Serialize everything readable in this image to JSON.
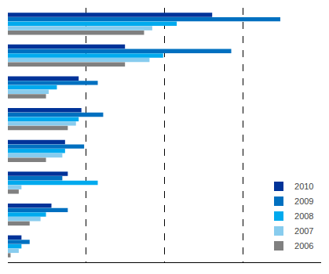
{
  "chart_data": {
    "type": "bar",
    "orientation": "horizontal",
    "categories": [
      null,
      null,
      null,
      null,
      null,
      null,
      null,
      null
    ],
    "series": [
      {
        "name": "2010",
        "color": "#003399",
        "values": [
          75,
          43,
          26,
          27,
          21,
          22,
          16,
          5
        ]
      },
      {
        "name": "2009",
        "color": "#0070C0",
        "values": [
          100,
          82,
          33,
          35,
          28,
          20,
          22,
          8
        ]
      },
      {
        "name": "2008",
        "color": "#00AAEE",
        "values": [
          62,
          57,
          18,
          26,
          21,
          33,
          14,
          5
        ]
      },
      {
        "name": "2007",
        "color": "#88CCEE",
        "values": [
          53,
          52,
          15,
          25,
          20,
          5,
          12,
          4
        ]
      },
      {
        "name": "2006",
        "color": "#808080",
        "values": [
          50,
          43,
          14,
          22,
          14,
          4,
          8,
          1
        ]
      }
    ],
    "xlim": [
      0,
      115
    ],
    "xticks": [
      28.75,
      57.5,
      86.25
    ],
    "grid": true,
    "tick_labels": false,
    "legend": "lower right"
  }
}
